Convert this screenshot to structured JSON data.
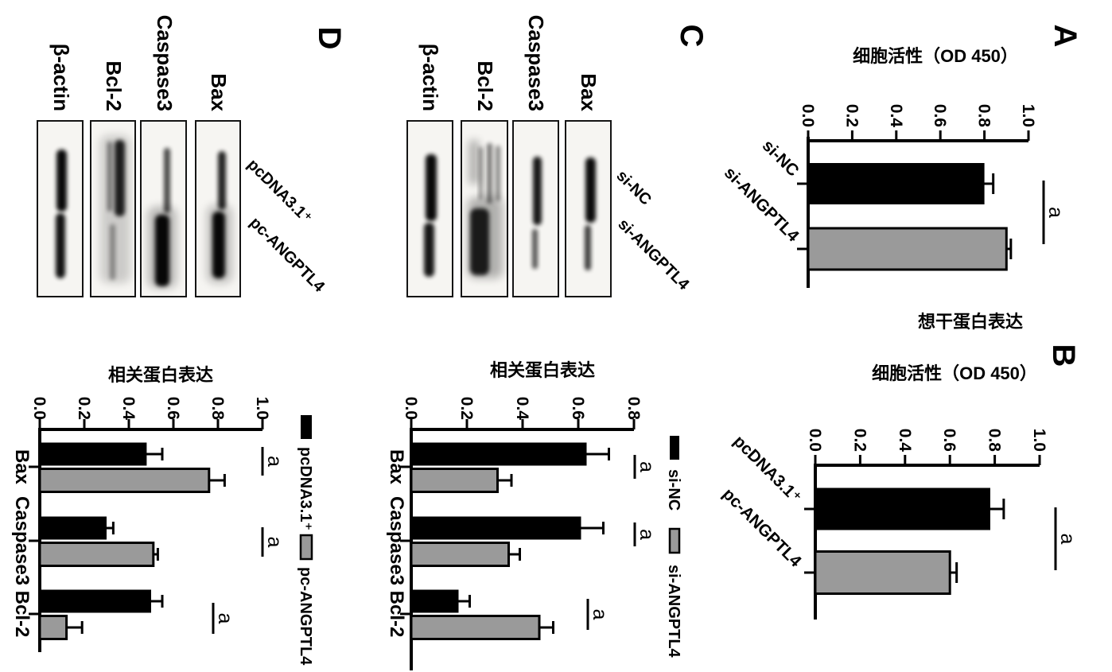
{
  "figure": {
    "panels": {
      "A": {
        "label": "A",
        "ylabel": "细胞活性（OD 450）"
      },
      "B": {
        "label": "B",
        "ylabel": "细胞活性（OD 450）",
        "ylabel_extra": "想干蛋白表达"
      },
      "C": {
        "label": "C",
        "ylabel": "相关蛋白表达",
        "blot": {
          "lanes": [
            "si-NC",
            "si-ANGPTL4"
          ],
          "proteins": [
            "Bax",
            "Caspase3",
            "Bcl-2",
            "β-actin"
          ]
        }
      },
      "D": {
        "label": "D",
        "ylabel": "相关蛋白表达",
        "blot": {
          "lanes": [
            "pcDNA3.1⁺",
            "pc-ANGPTL4"
          ],
          "proteins": [
            "Bax",
            "Caspase3",
            "Bcl-2",
            "β-actin"
          ]
        }
      }
    }
  },
  "chart_data": [
    {
      "panel": "A",
      "type": "bar",
      "ylabel": "细胞活性（OD 450）",
      "categories": [
        "si-NC",
        "si-ANGPTL4"
      ],
      "values": [
        0.8,
        0.9
      ],
      "errors": [
        0.04,
        0.02
      ],
      "bar_colors": [
        "#000000",
        "#9a9a9a"
      ],
      "ylim": [
        0,
        1.0
      ],
      "yticks": [
        "0.0",
        "0.2",
        "0.4",
        "0.6",
        "0.8",
        "1.0"
      ],
      "grid": "off",
      "significance": [
        {
          "label": "a",
          "between": [
            "si-NC",
            "si-ANGPTL4"
          ]
        }
      ]
    },
    {
      "panel": "B",
      "type": "bar",
      "ylabel": "细胞活性（OD 450）",
      "ylabel_extra": "想干蛋白表达",
      "categories": [
        "pcDNA3.1⁺",
        "pc-ANGPTL4"
      ],
      "values": [
        0.78,
        0.6
      ],
      "errors": [
        0.06,
        0.03
      ],
      "bar_colors": [
        "#000000",
        "#9a9a9a"
      ],
      "ylim": [
        0,
        1.0
      ],
      "yticks": [
        "0.0",
        "0.2",
        "0.4",
        "0.6",
        "0.8",
        "1.0"
      ],
      "grid": "off",
      "significance": [
        {
          "label": "a",
          "between": [
            "pcDNA3.1⁺",
            "pc-ANGPTL4"
          ]
        }
      ]
    },
    {
      "panel": "C",
      "type": "bar",
      "ylabel": "相关蛋白表达",
      "categories": [
        "Bax",
        "Caspase3",
        "Bcl-2"
      ],
      "series": [
        {
          "name": "si-NC",
          "color": "#000000",
          "values": [
            0.63,
            0.61,
            0.17
          ],
          "errors": [
            0.08,
            0.08,
            0.04
          ]
        },
        {
          "name": "si-ANGPTL4",
          "color": "#9a9a9a",
          "values": [
            0.31,
            0.35,
            0.46
          ],
          "errors": [
            0.05,
            0.04,
            0.05
          ]
        }
      ],
      "ylim": [
        0,
        0.8
      ],
      "yticks": [
        "0.0",
        "0.2",
        "0.4",
        "0.6",
        "0.8"
      ],
      "grid": "off",
      "legend_position": "top-right",
      "significance": [
        {
          "label": "a",
          "category": "Bax"
        },
        {
          "label": "a",
          "category": "Caspase3"
        },
        {
          "label": "a",
          "category": "Bcl-2"
        }
      ]
    },
    {
      "panel": "D",
      "type": "bar",
      "ylabel": "相关蛋白表达",
      "categories": [
        "Bax",
        "Caspase3",
        "Bcl-2"
      ],
      "series": [
        {
          "name": "pcDNA3.1⁺",
          "color": "#000000",
          "values": [
            0.48,
            0.3,
            0.5
          ],
          "errors": [
            0.07,
            0.03,
            0.05
          ]
        },
        {
          "name": "pc-ANGPTL4",
          "color": "#9a9a9a",
          "values": [
            0.76,
            0.51,
            0.12
          ],
          "errors": [
            0.07,
            0.02,
            0.07
          ]
        }
      ],
      "ylim": [
        0,
        1.0
      ],
      "yticks": [
        "0.0",
        "0.2",
        "0.4",
        "0.6",
        "0.8",
        "1.0"
      ],
      "grid": "off",
      "legend_position": "top-right",
      "significance": [
        {
          "label": "a",
          "category": "Bax"
        },
        {
          "label": "a",
          "category": "Caspase3"
        },
        {
          "label": "a",
          "category": "Bcl-2"
        }
      ]
    }
  ],
  "colors": {
    "bar_black": "#000000",
    "bar_gray": "#9a9a9a",
    "background": "#ffffff",
    "text": "#000000"
  }
}
